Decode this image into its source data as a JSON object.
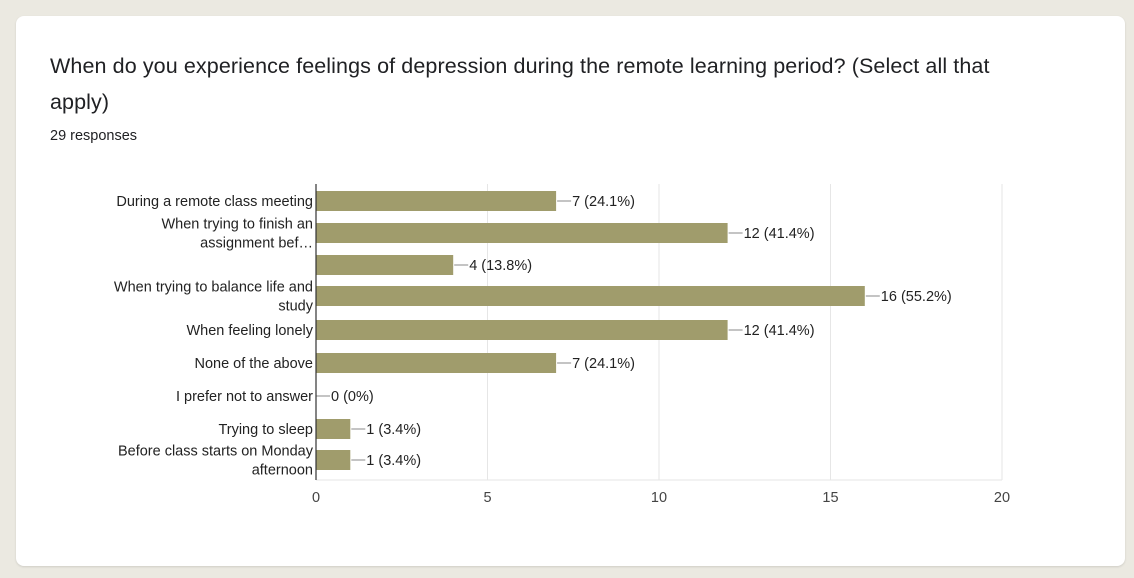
{
  "card": {
    "question": "When do you experience feelings of depression during the remote learning period? (Select all that apply)",
    "responses": "29 responses"
  },
  "colors": {
    "bar": "#a09c6c",
    "grid": "#e6e6e6",
    "axis": "#333333",
    "background": "#ebe9e1",
    "card": "#ffffff"
  },
  "chart_data": {
    "type": "bar",
    "orientation": "horizontal",
    "title": "When do you experience feelings of depression during the remote learning period? (Select all that apply)",
    "subtitle": "29 responses",
    "categories": [
      [
        "During a remote class meeting"
      ],
      [
        "When trying to finish an",
        "assignment bef…"
      ],
      [
        ""
      ],
      [
        "When trying to balance life and",
        "study"
      ],
      [
        "When feeling lonely"
      ],
      [
        "None of the above"
      ],
      [
        "I prefer not to answer"
      ],
      [
        "Trying to sleep"
      ],
      [
        "Before class starts on Monday",
        "afternoon"
      ]
    ],
    "values": [
      7,
      12,
      4,
      16,
      12,
      7,
      0,
      1,
      1
    ],
    "value_labels": [
      "7 (24.1%)",
      "12 (41.4%)",
      "4 (13.8%)",
      "16 (55.2%)",
      "12 (41.4%)",
      "7 (24.1%)",
      "0 (0%)",
      "1 (3.4%)",
      "1 (3.4%)"
    ],
    "xlim": [
      0,
      20
    ],
    "xticks": [
      0,
      5,
      10,
      15,
      20
    ],
    "xlabel": "",
    "ylabel": "",
    "grid": true
  }
}
